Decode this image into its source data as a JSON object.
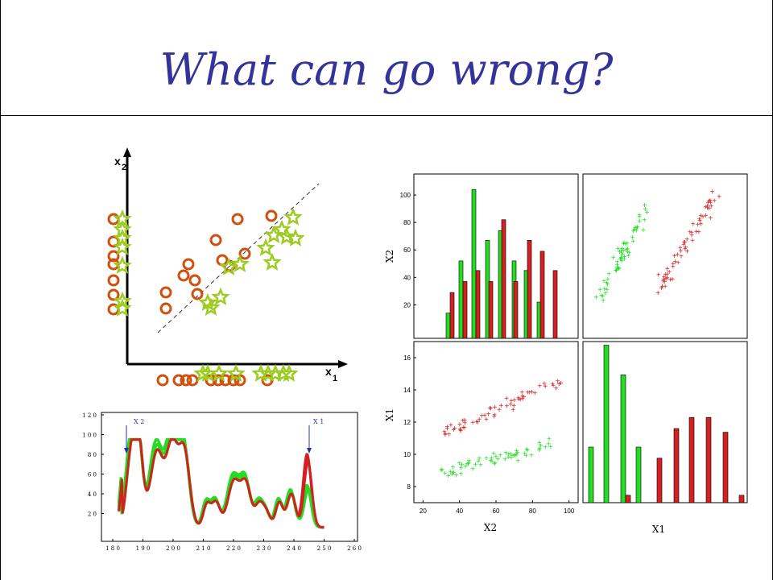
{
  "slide": {
    "title": "What can go wrong?",
    "colors": {
      "title": "#333399",
      "red": "#d42020",
      "green": "#22dd22",
      "circle": "#d05010",
      "star": "#9ccc22"
    }
  },
  "concept_diagram": {
    "x_axis_label": "x",
    "x_axis_subscript": "1",
    "y_axis_label": "x",
    "y_axis_subscript": "2",
    "markers": {
      "class_a": "circle",
      "class_b": "star"
    }
  },
  "chart_data": [
    {
      "type": "line",
      "xticks": [
        "1 8 0",
        "1 9 0",
        "2 0 0",
        "2 1 0",
        "2 2 0",
        "2 3 0",
        "2 4 0",
        "2 5 0",
        "2 6 0"
      ],
      "yticks": [
        "1 2 0",
        "1 0 0",
        "8 0",
        "6 0",
        "4 0",
        "2 0"
      ],
      "xlim": [
        180,
        260
      ],
      "ylim": [
        0,
        120
      ],
      "annotations": [
        {
          "text": "X 2",
          "x": 190
        },
        {
          "text": "X 1",
          "x": 244
        }
      ],
      "series": [
        {
          "color": "#d42020"
        },
        {
          "color": "#22dd22"
        }
      ]
    },
    {
      "type": "bar",
      "ylabel": "X2",
      "yticks": [
        "100",
        "80",
        "60",
        "40",
        "20"
      ],
      "ylim": [
        5,
        110
      ],
      "series": [
        {
          "color": "#22dd22",
          "values": [
            14,
            52,
            104,
            67,
            74,
            52,
            45,
            22
          ]
        },
        {
          "color": "#d42020",
          "values": [
            29,
            37,
            45,
            37,
            82,
            37,
            67,
            59,
            45
          ]
        }
      ]
    },
    {
      "type": "scatter",
      "series": [
        {
          "color": "#22dd22",
          "marker": "+"
        },
        {
          "color": "#d42020",
          "marker": "+"
        }
      ]
    },
    {
      "type": "scatter",
      "xlabel": "X2",
      "ylabel": "X1",
      "xticks": [
        "20",
        "40",
        "60",
        "80",
        "100"
      ],
      "yticks": [
        "16",
        "14",
        "12",
        "10",
        "8"
      ],
      "xlim": [
        15,
        105
      ],
      "ylim": [
        7,
        17
      ],
      "series": [
        {
          "color": "#22dd22",
          "marker": "+"
        },
        {
          "color": "#d42020",
          "marker": "+"
        }
      ]
    },
    {
      "type": "bar",
      "xlabel": "X1",
      "series": [
        {
          "color": "#22dd22",
          "values": [
            3,
            8.5,
            6.9,
            3
          ]
        },
        {
          "color": "#d42020",
          "values": [
            0.4,
            2.4,
            4,
            4.6,
            4.6,
            3.8,
            0.4
          ]
        }
      ]
    }
  ]
}
